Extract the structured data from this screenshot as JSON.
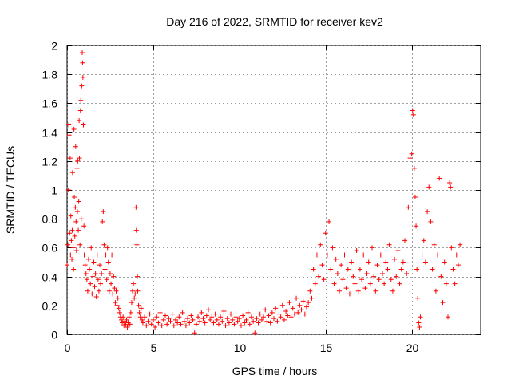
{
  "chart_data": {
    "type": "scatter",
    "title": "Day 216 of 2022, SRMTID for receiver kev2",
    "xlabel": "GPS time / hours",
    "ylabel": "SRMTID / TECUs",
    "xlim": [
      0,
      24
    ],
    "ylim": [
      0,
      2
    ],
    "xticks": [
      0,
      5,
      10,
      15,
      20
    ],
    "xtick_labels": [
      "0",
      "5",
      "10",
      "15",
      "20"
    ],
    "yticks": [
      0,
      0.2,
      0.4,
      0.6,
      0.8,
      1,
      1.2,
      1.4,
      1.6,
      1.8,
      2
    ],
    "ytick_labels": [
      "0",
      "0.2",
      "0.4",
      "0.6",
      "0.8",
      "1",
      "1.2",
      "1.4",
      "1.6",
      "1.8",
      "2"
    ],
    "grid": true,
    "marker": "+",
    "color": "#ff0000",
    "series": [
      {
        "name": "SRMTID",
        "points": [
          [
            0.0,
            0.48
          ],
          [
            0.05,
            0.62
          ],
          [
            0.08,
            1.0
          ],
          [
            0.1,
            1.45
          ],
          [
            0.12,
            1.38
          ],
          [
            0.15,
            0.7
          ],
          [
            0.18,
            1.22
          ],
          [
            0.2,
            0.55
          ],
          [
            0.22,
            0.82
          ],
          [
            0.25,
            0.65
          ],
          [
            0.28,
            0.52
          ],
          [
            0.3,
            0.72
          ],
          [
            0.32,
            1.12
          ],
          [
            0.35,
            0.6
          ],
          [
            0.38,
            0.45
          ],
          [
            0.4,
            1.42
          ],
          [
            0.42,
            0.95
          ],
          [
            0.45,
            0.68
          ],
          [
            0.48,
            0.88
          ],
          [
            0.5,
            1.3
          ],
          [
            0.52,
            0.78
          ],
          [
            0.55,
            0.58
          ],
          [
            0.58,
            1.15
          ],
          [
            0.6,
            0.85
          ],
          [
            0.62,
            1.2
          ],
          [
            0.65,
            0.72
          ],
          [
            0.68,
            0.92
          ],
          [
            0.7,
            1.48
          ],
          [
            0.72,
            1.22
          ],
          [
            0.75,
            0.62
          ],
          [
            0.78,
            1.55
          ],
          [
            0.8,
            1.62
          ],
          [
            0.82,
            0.8
          ],
          [
            0.85,
            1.72
          ],
          [
            0.88,
            1.95
          ],
          [
            0.9,
            1.88
          ],
          [
            0.92,
            1.78
          ],
          [
            0.95,
            1.45
          ],
          [
            0.98,
            0.75
          ],
          [
            1.0,
            0.55
          ],
          [
            1.05,
            0.48
          ],
          [
            1.1,
            0.42
          ],
          [
            1.15,
            0.38
          ],
          [
            1.2,
            0.3
          ],
          [
            1.25,
            0.52
          ],
          [
            1.3,
            0.45
          ],
          [
            1.35,
            0.35
          ],
          [
            1.4,
            0.6
          ],
          [
            1.45,
            0.28
          ],
          [
            1.5,
            0.4
          ],
          [
            1.55,
            0.5
          ],
          [
            1.6,
            0.33
          ],
          [
            1.65,
            0.42
          ],
          [
            1.7,
            0.26
          ],
          [
            1.75,
            0.55
          ],
          [
            1.8,
            0.38
          ],
          [
            1.85,
            0.3
          ],
          [
            1.9,
            0.48
          ],
          [
            1.95,
            0.35
          ],
          [
            2.0,
            0.42
          ],
          [
            2.05,
            0.78
          ],
          [
            2.1,
            0.85
          ],
          [
            2.15,
            0.62
          ],
          [
            2.2,
            0.45
          ],
          [
            2.25,
            0.55
          ],
          [
            2.3,
            0.38
          ],
          [
            2.35,
            0.6
          ],
          [
            2.4,
            0.5
          ],
          [
            2.45,
            0.3
          ],
          [
            2.5,
            0.42
          ],
          [
            2.55,
            0.35
          ],
          [
            2.6,
            0.55
          ],
          [
            2.65,
            0.28
          ],
          [
            2.7,
            0.4
          ],
          [
            2.75,
            0.32
          ],
          [
            2.8,
            0.22
          ],
          [
            2.85,
            0.3
          ],
          [
            2.9,
            0.2
          ],
          [
            2.95,
            0.25
          ],
          [
            3.0,
            0.18
          ],
          [
            3.05,
            0.15
          ],
          [
            3.1,
            0.12
          ],
          [
            3.15,
            0.1
          ],
          [
            3.2,
            0.08
          ],
          [
            3.25,
            0.12
          ],
          [
            3.3,
            0.06
          ],
          [
            3.35,
            0.09
          ],
          [
            3.4,
            0.07
          ],
          [
            3.45,
            0.1
          ],
          [
            3.5,
            0.05
          ],
          [
            3.55,
            0.08
          ],
          [
            3.6,
            0.12
          ],
          [
            3.65,
            0.07
          ],
          [
            3.7,
            0.15
          ],
          [
            3.75,
            0.22
          ],
          [
            3.8,
            0.3
          ],
          [
            3.85,
            0.35
          ],
          [
            3.9,
            0.25
          ],
          [
            3.95,
            0.28
          ],
          [
            4.0,
            0.88
          ],
          [
            4.02,
            0.72
          ],
          [
            4.05,
            0.62
          ],
          [
            4.08,
            0.4
          ],
          [
            4.1,
            0.3
          ],
          [
            4.15,
            0.2
          ],
          [
            4.2,
            0.15
          ],
          [
            4.25,
            0.12
          ],
          [
            4.3,
            0.18
          ],
          [
            4.35,
            0.1
          ],
          [
            4.4,
            0.08
          ],
          [
            4.5,
            0.12
          ],
          [
            4.6,
            0.06
          ],
          [
            4.7,
            0.09
          ],
          [
            4.8,
            0.14
          ],
          [
            4.9,
            0.07
          ],
          [
            5.0,
            0.1
          ],
          [
            5.1,
            0.05
          ],
          [
            5.2,
            0.12
          ],
          [
            5.3,
            0.08
          ],
          [
            5.4,
            0.15
          ],
          [
            5.5,
            0.06
          ],
          [
            5.6,
            0.1
          ],
          [
            5.7,
            0.13
          ],
          [
            5.8,
            0.07
          ],
          [
            5.9,
            0.11
          ],
          [
            6.0,
            0.09
          ],
          [
            6.1,
            0.14
          ],
          [
            6.2,
            0.06
          ],
          [
            6.3,
            0.1
          ],
          [
            6.4,
            0.08
          ],
          [
            6.5,
            0.12
          ],
          [
            6.6,
            0.07
          ],
          [
            6.7,
            0.15
          ],
          [
            6.8,
            0.09
          ],
          [
            6.9,
            0.06
          ],
          [
            7.0,
            0.11
          ],
          [
            7.1,
            0.08
          ],
          [
            7.2,
            0.13
          ],
          [
            7.3,
            0.1
          ],
          [
            7.4,
            0.01
          ],
          [
            7.5,
            0.07
          ],
          [
            7.6,
            0.12
          ],
          [
            7.7,
            0.09
          ],
          [
            7.8,
            0.15
          ],
          [
            7.9,
            0.11
          ],
          [
            8.0,
            0.08
          ],
          [
            8.1,
            0.13
          ],
          [
            8.2,
            0.17
          ],
          [
            8.3,
            0.1
          ],
          [
            8.4,
            0.12
          ],
          [
            8.5,
            0.08
          ],
          [
            8.6,
            0.14
          ],
          [
            8.7,
            0.1
          ],
          [
            8.8,
            0.07
          ],
          [
            8.9,
            0.12
          ],
          [
            9.0,
            0.09
          ],
          [
            9.1,
            0.16
          ],
          [
            9.2,
            0.06
          ],
          [
            9.3,
            0.11
          ],
          [
            9.4,
            0.08
          ],
          [
            9.5,
            0.14
          ],
          [
            9.6,
            0.1
          ],
          [
            9.7,
            0.07
          ],
          [
            9.8,
            0.12
          ],
          [
            9.9,
            0.09
          ],
          [
            10.0,
            0.11
          ],
          [
            10.1,
            0.06
          ],
          [
            10.2,
            0.13
          ],
          [
            10.3,
            0.08
          ],
          [
            10.4,
            0.1
          ],
          [
            10.5,
            0.15
          ],
          [
            10.6,
            0.07
          ],
          [
            10.7,
            0.12
          ],
          [
            10.8,
            0.09
          ],
          [
            10.9,
            0.01
          ],
          [
            11.0,
            0.11
          ],
          [
            11.1,
            0.08
          ],
          [
            11.2,
            0.14
          ],
          [
            11.3,
            0.1
          ],
          [
            11.4,
            0.12
          ],
          [
            11.5,
            0.17
          ],
          [
            11.6,
            0.09
          ],
          [
            11.7,
            0.13
          ],
          [
            11.8,
            0.08
          ],
          [
            11.9,
            0.15
          ],
          [
            12.0,
            0.11
          ],
          [
            12.1,
            0.18
          ],
          [
            12.2,
            0.09
          ],
          [
            12.3,
            0.14
          ],
          [
            12.4,
            0.12
          ],
          [
            12.5,
            0.2
          ],
          [
            12.6,
            0.1
          ],
          [
            12.7,
            0.16
          ],
          [
            12.8,
            0.13
          ],
          [
            12.9,
            0.22
          ],
          [
            13.0,
            0.12
          ],
          [
            13.1,
            0.18
          ],
          [
            13.2,
            0.14
          ],
          [
            13.3,
            0.25
          ],
          [
            13.4,
            0.15
          ],
          [
            13.5,
            0.2
          ],
          [
            13.6,
            0.17
          ],
          [
            13.7,
            0.23
          ],
          [
            13.8,
            0.14
          ],
          [
            13.9,
            0.19
          ],
          [
            14.0,
            0.22
          ],
          [
            14.1,
            0.3
          ],
          [
            14.2,
            0.25
          ],
          [
            14.3,
            0.45
          ],
          [
            14.4,
            0.35
          ],
          [
            14.5,
            0.55
          ],
          [
            14.6,
            0.4
          ],
          [
            14.7,
            0.62
          ],
          [
            14.8,
            0.48
          ],
          [
            14.9,
            0.38
          ],
          [
            15.0,
            0.7
          ],
          [
            15.1,
            0.55
          ],
          [
            15.2,
            0.78
          ],
          [
            15.3,
            0.45
          ],
          [
            15.4,
            0.6
          ],
          [
            15.5,
            0.35
          ],
          [
            15.6,
            0.52
          ],
          [
            15.7,
            0.42
          ],
          [
            15.8,
            0.3
          ],
          [
            15.9,
            0.48
          ],
          [
            16.0,
            0.38
          ],
          [
            16.1,
            0.55
          ],
          [
            16.2,
            0.32
          ],
          [
            16.3,
            0.45
          ],
          [
            16.4,
            0.28
          ],
          [
            16.5,
            0.5
          ],
          [
            16.6,
            0.4
          ],
          [
            16.7,
            0.35
          ],
          [
            16.8,
            0.58
          ],
          [
            16.9,
            0.3
          ],
          [
            17.0,
            0.45
          ],
          [
            17.1,
            0.38
          ],
          [
            17.2,
            0.55
          ],
          [
            17.3,
            0.32
          ],
          [
            17.4,
            0.42
          ],
          [
            17.5,
            0.5
          ],
          [
            17.6,
            0.35
          ],
          [
            17.7,
            0.6
          ],
          [
            17.8,
            0.4
          ],
          [
            17.9,
            0.3
          ],
          [
            18.0,
            0.48
          ],
          [
            18.1,
            0.38
          ],
          [
            18.2,
            0.55
          ],
          [
            18.3,
            0.42
          ],
          [
            18.4,
            0.35
          ],
          [
            18.5,
            0.5
          ],
          [
            18.6,
            0.45
          ],
          [
            18.7,
            0.62
          ],
          [
            18.8,
            0.38
          ],
          [
            18.9,
            0.3
          ],
          [
            19.0,
            0.52
          ],
          [
            19.1,
            0.4
          ],
          [
            19.2,
            0.58
          ],
          [
            19.3,
            0.35
          ],
          [
            19.4,
            0.45
          ],
          [
            19.5,
            0.5
          ],
          [
            19.6,
            0.65
          ],
          [
            19.7,
            0.42
          ],
          [
            19.8,
            0.88
          ],
          [
            19.9,
            1.22
          ],
          [
            20.0,
            1.25
          ],
          [
            20.05,
            1.55
          ],
          [
            20.1,
            1.52
          ],
          [
            20.15,
            1.15
          ],
          [
            20.2,
            0.95
          ],
          [
            20.25,
            0.75
          ],
          [
            20.3,
            0.45
          ],
          [
            20.35,
            0.25
          ],
          [
            20.4,
            0.08
          ],
          [
            20.45,
            0.05
          ],
          [
            20.5,
            0.12
          ],
          [
            20.6,
            0.55
          ],
          [
            20.7,
            0.65
          ],
          [
            20.8,
            0.5
          ],
          [
            20.9,
            0.85
          ],
          [
            21.0,
            1.02
          ],
          [
            21.1,
            0.78
          ],
          [
            21.2,
            0.45
          ],
          [
            21.3,
            0.62
          ],
          [
            21.4,
            0.3
          ],
          [
            21.5,
            0.55
          ],
          [
            21.6,
            1.08
          ],
          [
            21.7,
            0.4
          ],
          [
            21.8,
            0.22
          ],
          [
            21.9,
            0.5
          ],
          [
            22.0,
            0.35
          ],
          [
            22.1,
            0.12
          ],
          [
            22.2,
            1.05
          ],
          [
            22.25,
            1.02
          ],
          [
            22.3,
            0.6
          ],
          [
            22.4,
            0.45
          ],
          [
            22.5,
            0.35
          ],
          [
            22.6,
            0.55
          ],
          [
            22.7,
            0.48
          ],
          [
            22.8,
            0.62
          ]
        ]
      }
    ]
  }
}
